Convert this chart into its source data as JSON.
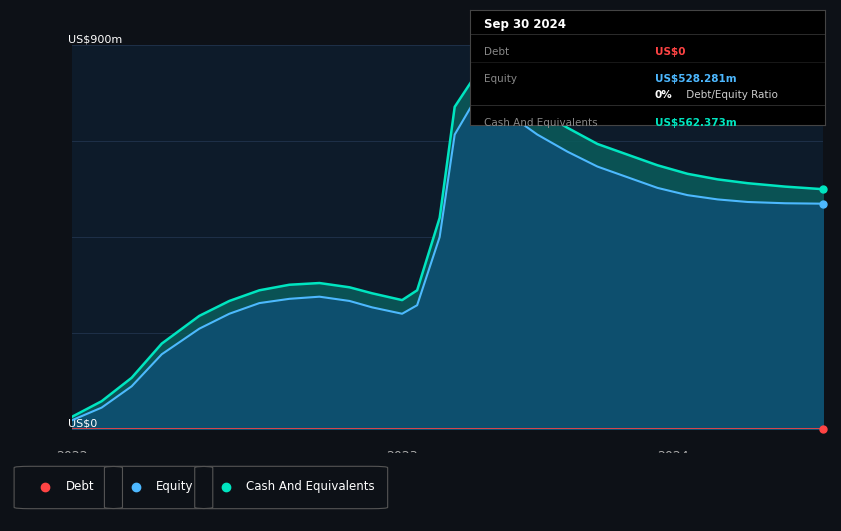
{
  "bg_color": "#0d1117",
  "plot_bg_color": "#0d1b2a",
  "grid_color": "#1e3048",
  "ylabel_text": "US$900m",
  "y0_text": "US$0",
  "x_ticks": [
    "2022",
    "2023",
    "2024"
  ],
  "debt_color": "#ff4444",
  "equity_color": "#4db8ff",
  "cash_color": "#00e5c0",
  "fill_color_equity": "#0d4f6e",
  "fill_color_cash": "#0a5c5c",
  "tooltip_bg": "#000000",
  "tooltip_border": "#333333",
  "tooltip_title": "Sep 30 2024",
  "tooltip_debt_label": "Debt",
  "tooltip_debt_value": "US$0",
  "tooltip_equity_label": "Equity",
  "tooltip_equity_value": "US$528.281m",
  "tooltip_ratio": "0% Debt/Equity Ratio",
  "tooltip_ratio_bold": "0%",
  "tooltip_cash_label": "Cash And Equivalents",
  "tooltip_cash_value": "US$562.373m",
  "legend_items": [
    {
      "label": "Debt",
      "color": "#ff4444"
    },
    {
      "label": "Equity",
      "color": "#4db8ff"
    },
    {
      "label": "Cash And Equivalents",
      "color": "#00e5c0"
    }
  ],
  "x": [
    0.0,
    0.04,
    0.08,
    0.12,
    0.17,
    0.21,
    0.25,
    0.29,
    0.33,
    0.37,
    0.4,
    0.44,
    0.46,
    0.49,
    0.51,
    0.54,
    0.58,
    0.62,
    0.66,
    0.7,
    0.74,
    0.78,
    0.82,
    0.86,
    0.9,
    0.95,
    1.0
  ],
  "equity": [
    20,
    50,
    100,
    175,
    235,
    270,
    295,
    305,
    310,
    300,
    285,
    270,
    290,
    450,
    690,
    780,
    740,
    690,
    650,
    615,
    590,
    565,
    548,
    538,
    532,
    529,
    528
  ],
  "cash": [
    28,
    65,
    120,
    200,
    265,
    300,
    325,
    338,
    342,
    332,
    318,
    302,
    325,
    495,
    755,
    835,
    795,
    748,
    706,
    668,
    643,
    618,
    598,
    585,
    576,
    568,
    562
  ],
  "debt": [
    0,
    0,
    0,
    0,
    0,
    0,
    0,
    0,
    0,
    0,
    0,
    0,
    0,
    0,
    0,
    0,
    0,
    0,
    0,
    0,
    0,
    0,
    0,
    0,
    0,
    0,
    0
  ],
  "ylim": [
    0,
    900
  ],
  "xlim": [
    0,
    1.0
  ]
}
